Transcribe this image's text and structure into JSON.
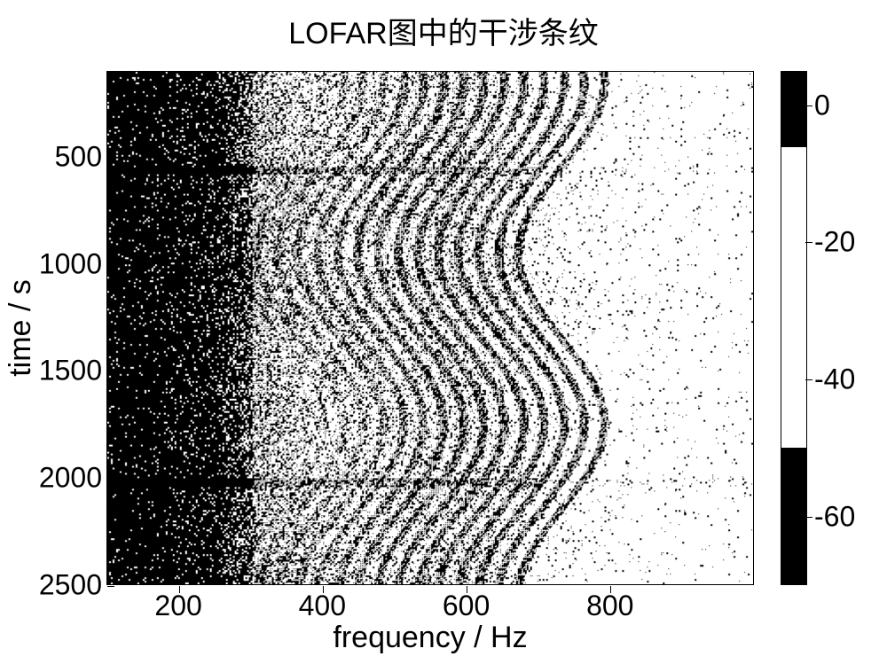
{
  "title": "LOFAR图中的干涉条纹",
  "xlabel": "frequency / Hz",
  "ylabel": "time / s",
  "type": "heatmap",
  "background_color": "#ffffff",
  "text_color": "#000000",
  "title_fontsize": 34,
  "label_fontsize": 34,
  "tick_fontsize": 32,
  "border_color": "#000000",
  "x_axis": {
    "min": 100,
    "max": 1000,
    "ticks": [
      200,
      400,
      600,
      800
    ]
  },
  "y_axis": {
    "min": 100,
    "max": 2500,
    "reversed": true,
    "ticks": [
      500,
      1000,
      1500,
      2000,
      2500
    ]
  },
  "colorbar": {
    "vmin": -70,
    "vmax": 5,
    "ticks": [
      0,
      -20,
      -40,
      -60
    ],
    "segments": [
      {
        "from": 5,
        "to": -6,
        "color": "#000000"
      },
      {
        "from": -6,
        "to": -50,
        "color": "#ffffff"
      },
      {
        "from": -50,
        "to": -70,
        "color": "#000000"
      }
    ]
  },
  "spectrogram_model": {
    "description": "Interference fringe pattern: dense dark region at low frequency (100-300 Hz) across all time; curved fringes around 300-700 Hz that shift with time; sparse dots above 700 Hz.",
    "low_freq_dense_region": {
      "f_start": 100,
      "f_end": 300,
      "density": 0.95
    },
    "speckle_density_map": [
      {
        "f": 150,
        "density": 0.95
      },
      {
        "f": 250,
        "density": 0.88
      },
      {
        "f": 320,
        "density": 0.55
      },
      {
        "f": 400,
        "density": 0.3
      },
      {
        "f": 500,
        "density": 0.28
      },
      {
        "f": 600,
        "density": 0.3
      },
      {
        "f": 700,
        "density": 0.1
      },
      {
        "f": 800,
        "density": 0.04
      },
      {
        "f": 900,
        "density": 0.03
      },
      {
        "f": 1000,
        "density": 0.02
      }
    ],
    "fringes": {
      "ridge_center": {
        "f0": 600,
        "amplitude": 60,
        "period_s": 1600,
        "phase": 1.0
      },
      "count": 14,
      "spacing_hz": 28,
      "width_hz": 6,
      "span_hz": 400,
      "base_offset_hz": -260
    },
    "horizontal_events": [
      {
        "t": 560,
        "strength": 0.9,
        "thickness": 18
      },
      {
        "t": 2020,
        "strength": 0.9,
        "thickness": 20
      }
    ]
  }
}
